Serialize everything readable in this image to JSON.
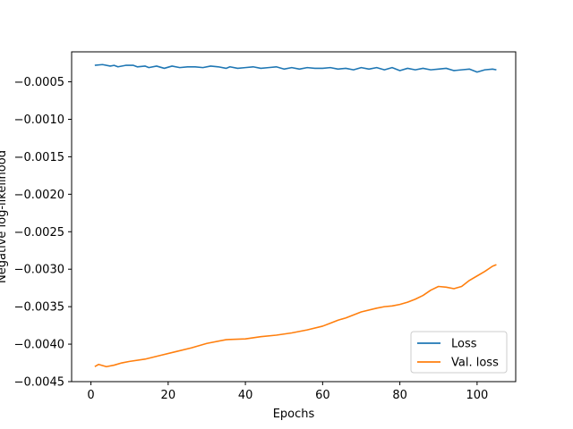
{
  "chart_data": {
    "type": "line",
    "title": "",
    "xlabel": "Epochs",
    "ylabel": "Negative log-likelihood",
    "xlim": [
      -5,
      110
    ],
    "ylim": [
      -0.0045,
      -0.0001
    ],
    "xticks": [
      0,
      20,
      40,
      60,
      80,
      100
    ],
    "xtick_labels": [
      "0",
      "20",
      "40",
      "60",
      "80",
      "100"
    ],
    "yticks": [
      -0.0045,
      -0.004,
      -0.0035,
      -0.003,
      -0.0025,
      -0.002,
      -0.0015,
      -0.001,
      -0.0005
    ],
    "ytick_labels": [
      "−0.0045",
      "−0.0040",
      "−0.0035",
      "−0.0030",
      "−0.0025",
      "−0.0020",
      "−0.0015",
      "−0.0010",
      "−0.0005"
    ],
    "grid": false,
    "legend_position": "bottom-right",
    "series": [
      {
        "name": "Loss",
        "color": "#1f77b4",
        "points": [
          [
            1,
            -0.00028
          ],
          [
            3,
            -0.00027
          ],
          [
            5,
            -0.00029
          ],
          [
            6,
            -0.00028
          ],
          [
            7,
            -0.0003
          ],
          [
            9,
            -0.00028
          ],
          [
            11,
            -0.00028
          ],
          [
            12,
            -0.0003
          ],
          [
            14,
            -0.00029
          ],
          [
            15,
            -0.00031
          ],
          [
            17,
            -0.00029
          ],
          [
            19,
            -0.00032
          ],
          [
            21,
            -0.00029
          ],
          [
            23,
            -0.00031
          ],
          [
            25,
            -0.0003
          ],
          [
            27,
            -0.0003
          ],
          [
            29,
            -0.00031
          ],
          [
            31,
            -0.00029
          ],
          [
            33,
            -0.0003
          ],
          [
            35,
            -0.00032
          ],
          [
            36,
            -0.0003
          ],
          [
            38,
            -0.00032
          ],
          [
            40,
            -0.00031
          ],
          [
            42,
            -0.0003
          ],
          [
            44,
            -0.00032
          ],
          [
            46,
            -0.00031
          ],
          [
            48,
            -0.0003
          ],
          [
            50,
            -0.00033
          ],
          [
            52,
            -0.00031
          ],
          [
            54,
            -0.00033
          ],
          [
            56,
            -0.00031
          ],
          [
            58,
            -0.00032
          ],
          [
            60,
            -0.00032
          ],
          [
            62,
            -0.00031
          ],
          [
            64,
            -0.00033
          ],
          [
            66,
            -0.00032
          ],
          [
            68,
            -0.00034
          ],
          [
            70,
            -0.00031
          ],
          [
            72,
            -0.00033
          ],
          [
            74,
            -0.00031
          ],
          [
            76,
            -0.00034
          ],
          [
            78,
            -0.00031
          ],
          [
            80,
            -0.00035
          ],
          [
            82,
            -0.00032
          ],
          [
            84,
            -0.00034
          ],
          [
            86,
            -0.00032
          ],
          [
            88,
            -0.00034
          ],
          [
            90,
            -0.00033
          ],
          [
            92,
            -0.00032
          ],
          [
            94,
            -0.00035
          ],
          [
            96,
            -0.00034
          ],
          [
            98,
            -0.00033
          ],
          [
            100,
            -0.00037
          ],
          [
            102,
            -0.00034
          ],
          [
            104,
            -0.00033
          ],
          [
            105,
            -0.00034
          ]
        ]
      },
      {
        "name": "Val. loss",
        "color": "#ff7f0e",
        "points": [
          [
            1,
            -0.0043
          ],
          [
            2,
            -0.00427
          ],
          [
            4,
            -0.0043
          ],
          [
            6,
            -0.00428
          ],
          [
            8,
            -0.00425
          ],
          [
            10,
            -0.00423
          ],
          [
            14,
            -0.0042
          ],
          [
            18,
            -0.00415
          ],
          [
            22,
            -0.0041
          ],
          [
            26,
            -0.00405
          ],
          [
            30,
            -0.00399
          ],
          [
            35,
            -0.00394
          ],
          [
            40,
            -0.00393
          ],
          [
            44,
            -0.0039
          ],
          [
            48,
            -0.00388
          ],
          [
            52,
            -0.00385
          ],
          [
            56,
            -0.00381
          ],
          [
            60,
            -0.00376
          ],
          [
            62,
            -0.00372
          ],
          [
            64,
            -0.00368
          ],
          [
            66,
            -0.00365
          ],
          [
            68,
            -0.00361
          ],
          [
            70,
            -0.00357
          ],
          [
            74,
            -0.00352
          ],
          [
            76,
            -0.0035
          ],
          [
            78,
            -0.00349
          ],
          [
            80,
            -0.00347
          ],
          [
            82,
            -0.00344
          ],
          [
            84,
            -0.0034
          ],
          [
            86,
            -0.00335
          ],
          [
            88,
            -0.00328
          ],
          [
            90,
            -0.00323
          ],
          [
            92,
            -0.00324
          ],
          [
            94,
            -0.00326
          ],
          [
            96,
            -0.00323
          ],
          [
            98,
            -0.00315
          ],
          [
            100,
            -0.00309
          ],
          [
            102,
            -0.00303
          ],
          [
            104,
            -0.00296
          ],
          [
            105,
            -0.00294
          ]
        ]
      }
    ]
  }
}
